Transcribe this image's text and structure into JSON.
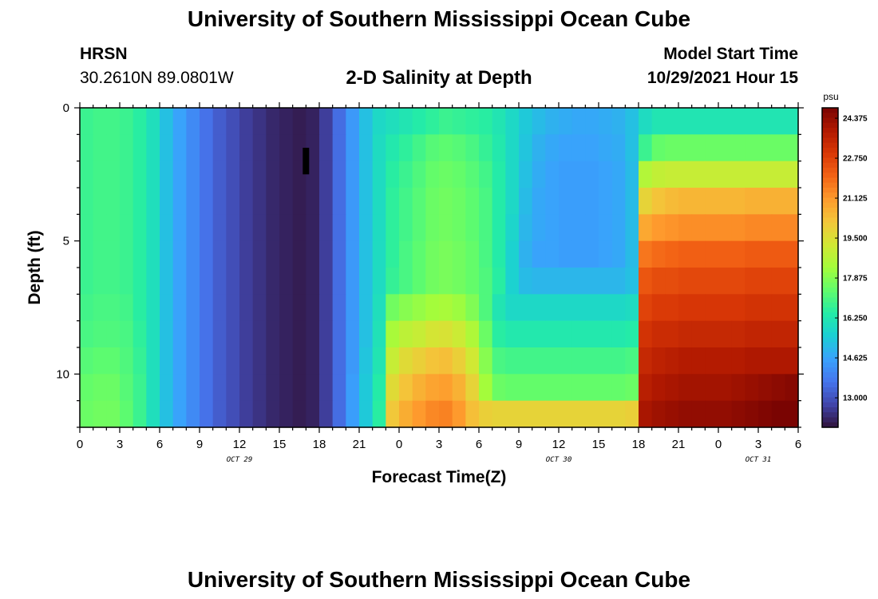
{
  "header": {
    "title": "University of Southern Mississippi Ocean Cube",
    "station_code": "HRSN",
    "station_coords": "30.2610N  89.0801W",
    "model_start_label": "Model Start Time",
    "model_start_value": "10/29/2021 Hour 15"
  },
  "footer": {
    "title": "University of Southern Mississippi Ocean Cube"
  },
  "chart_data": {
    "type": "heatmap",
    "title": "2-D Salinity at Depth",
    "xlabel": "Forecast Time(Z)",
    "ylabel": "Depth (ft)",
    "x_start_hour": 0,
    "x_end_hour": 54,
    "x_ticks": [
      {
        "hour": 0,
        "label": "0"
      },
      {
        "hour": 3,
        "label": "3"
      },
      {
        "hour": 6,
        "label": "6"
      },
      {
        "hour": 9,
        "label": "9"
      },
      {
        "hour": 12,
        "label": "12"
      },
      {
        "hour": 15,
        "label": "15"
      },
      {
        "hour": 18,
        "label": "18"
      },
      {
        "hour": 21,
        "label": "21"
      },
      {
        "hour": 24,
        "label": "0"
      },
      {
        "hour": 27,
        "label": "3"
      },
      {
        "hour": 30,
        "label": "6"
      },
      {
        "hour": 33,
        "label": "9"
      },
      {
        "hour": 36,
        "label": "12"
      },
      {
        "hour": 39,
        "label": "15"
      },
      {
        "hour": 42,
        "label": "18"
      },
      {
        "hour": 45,
        "label": "21"
      },
      {
        "hour": 48,
        "label": "0"
      },
      {
        "hour": 51,
        "label": "3"
      },
      {
        "hour": 54,
        "label": "6"
      }
    ],
    "date_labels": [
      {
        "hour": 12,
        "label": "OCT 29"
      },
      {
        "hour": 36,
        "label": "OCT 30"
      },
      {
        "hour": 51,
        "label": "OCT 31"
      }
    ],
    "y_range": [
      0,
      12
    ],
    "y_ticks": [
      {
        "value": 0,
        "label": "0"
      },
      {
        "value": 5,
        "label": "5"
      },
      {
        "value": 10,
        "label": "10"
      }
    ],
    "colorbar": {
      "unit": "psu",
      "min": 11.8,
      "max": 24.8,
      "ticks": [
        "24.375",
        "22.750",
        "21.125",
        "19.500",
        "17.875",
        "16.250",
        "14.625",
        "13.000"
      ]
    },
    "colors": [
      "#30123b",
      "#4145ab",
      "#4675ed",
      "#39a2fc",
      "#1bcfd4",
      "#24eca6",
      "#61fc6c",
      "#a4fc3b",
      "#d1e834",
      "#f3c63a",
      "#fe9b2d",
      "#f36315",
      "#d93806",
      "#b11901",
      "#7a0402"
    ],
    "missing_marker": {
      "hour": 17,
      "depth_from": 1.5,
      "depth_to": 2.5
    },
    "depth_levels_ft": [
      0.5,
      1.5,
      2.5,
      3.5,
      4.5,
      5.5,
      6.5,
      7.5,
      8.5,
      9.5,
      10.5,
      11.5
    ],
    "salinity_psu_by_depth": [
      [
        16.8,
        16.9,
        16.9,
        16.8,
        16.5,
        16.0,
        15.2,
        14.6,
        14.1,
        13.6,
        13.2,
        12.9,
        12.6,
        12.4,
        12.2,
        12.1,
        12.0,
        12.1,
        12.6,
        13.5,
        14.4,
        15.2,
        15.8,
        16.0,
        16.2,
        16.4,
        16.6,
        16.8,
        16.7,
        16.6,
        16.5,
        16.2,
        15.8,
        15.4,
        15.1,
        14.9,
        14.8,
        14.7,
        14.7,
        14.8,
        14.9,
        15.2,
        15.9,
        16.2,
        16.2,
        16.2,
        16.2,
        16.2,
        16.2,
        16.2,
        16.2,
        16.2,
        16.2,
        16.2
      ],
      [
        16.8,
        16.9,
        16.9,
        16.8,
        16.5,
        16.0,
        15.2,
        14.6,
        14.1,
        13.6,
        13.2,
        12.9,
        12.6,
        12.4,
        12.2,
        12.1,
        12.0,
        12.1,
        12.6,
        13.5,
        14.4,
        15.2,
        15.9,
        16.3,
        16.6,
        16.9,
        17.2,
        17.3,
        17.2,
        17.0,
        16.7,
        16.3,
        15.8,
        15.3,
        14.9,
        14.7,
        14.6,
        14.6,
        14.6,
        14.7,
        14.8,
        15.2,
        16.8,
        17.4,
        17.5,
        17.5,
        17.5,
        17.5,
        17.5,
        17.5,
        17.5,
        17.5,
        17.5,
        17.5
      ],
      [
        16.8,
        16.9,
        16.9,
        16.8,
        16.5,
        16.0,
        15.2,
        14.6,
        14.1,
        13.6,
        13.2,
        12.9,
        12.6,
        12.4,
        12.2,
        12.1,
        12.0,
        12.1,
        12.6,
        13.5,
        14.4,
        15.2,
        15.9,
        16.5,
        16.8,
        17.1,
        17.4,
        17.5,
        17.4,
        17.2,
        16.9,
        16.4,
        15.8,
        15.2,
        14.8,
        14.6,
        14.5,
        14.5,
        14.5,
        14.6,
        14.7,
        15.1,
        18.6,
        18.9,
        19.0,
        19.0,
        19.0,
        19.0,
        19.0,
        19.0,
        19.0,
        19.0,
        19.0,
        19.0
      ],
      [
        16.8,
        16.9,
        16.9,
        16.8,
        16.5,
        16.0,
        15.2,
        14.6,
        14.1,
        13.6,
        13.2,
        12.9,
        12.6,
        12.4,
        12.2,
        12.1,
        12.0,
        12.1,
        12.6,
        13.5,
        14.4,
        15.2,
        15.9,
        16.6,
        16.9,
        17.2,
        17.5,
        17.6,
        17.5,
        17.3,
        17.0,
        16.4,
        15.8,
        15.1,
        14.7,
        14.6,
        14.5,
        14.5,
        14.5,
        14.6,
        14.7,
        15.1,
        19.8,
        20.2,
        20.4,
        20.5,
        20.5,
        20.5,
        20.5,
        20.5,
        20.6,
        20.6,
        20.6,
        20.6
      ],
      [
        16.8,
        16.9,
        16.9,
        16.8,
        16.5,
        16.0,
        15.2,
        14.6,
        14.1,
        13.6,
        13.2,
        12.9,
        12.6,
        12.4,
        12.2,
        12.1,
        12.0,
        12.1,
        12.6,
        13.5,
        14.4,
        15.2,
        15.9,
        16.6,
        16.9,
        17.2,
        17.5,
        17.6,
        17.5,
        17.3,
        17.0,
        16.4,
        15.7,
        15.0,
        14.7,
        14.6,
        14.5,
        14.5,
        14.5,
        14.6,
        14.7,
        15.1,
        20.8,
        21.1,
        21.2,
        21.3,
        21.3,
        21.3,
        21.3,
        21.3,
        21.4,
        21.4,
        21.4,
        21.4
      ],
      [
        16.8,
        16.9,
        16.9,
        16.8,
        16.5,
        16.0,
        15.2,
        14.6,
        14.1,
        13.6,
        13.2,
        12.9,
        12.6,
        12.4,
        12.2,
        12.1,
        12.0,
        12.1,
        12.6,
        13.5,
        14.4,
        15.2,
        15.9,
        16.6,
        17.0,
        17.3,
        17.6,
        17.7,
        17.6,
        17.4,
        17.0,
        16.4,
        15.6,
        14.9,
        14.6,
        14.6,
        14.5,
        14.5,
        14.5,
        14.6,
        14.7,
        15.1,
        21.7,
        21.9,
        22.0,
        22.1,
        22.1,
        22.1,
        22.1,
        22.1,
        22.2,
        22.2,
        22.2,
        22.2
      ],
      [
        16.8,
        16.9,
        16.9,
        16.8,
        16.5,
        16.0,
        15.2,
        14.6,
        14.1,
        13.6,
        13.2,
        12.9,
        12.6,
        12.4,
        12.2,
        12.1,
        12.0,
        12.1,
        12.6,
        13.5,
        14.4,
        15.2,
        15.9,
        16.7,
        17.0,
        17.3,
        17.6,
        17.7,
        17.6,
        17.4,
        17.1,
        16.5,
        15.6,
        15.1,
        15.0,
        15.0,
        15.0,
        15.0,
        15.0,
        15.0,
        15.0,
        15.2,
        22.3,
        22.5,
        22.5,
        22.6,
        22.6,
        22.6,
        22.6,
        22.6,
        22.7,
        22.7,
        22.7,
        22.7
      ],
      [
        16.9,
        17.0,
        17.0,
        16.9,
        16.5,
        16.0,
        15.2,
        14.6,
        14.1,
        13.6,
        13.2,
        12.9,
        12.6,
        12.4,
        12.2,
        12.1,
        12.0,
        12.1,
        12.6,
        13.5,
        14.4,
        15.2,
        16.0,
        17.6,
        17.9,
        18.1,
        18.3,
        18.4,
        18.2,
        17.8,
        17.1,
        16.2,
        15.8,
        15.8,
        15.8,
        15.8,
        15.8,
        15.8,
        15.8,
        15.8,
        15.8,
        15.9,
        22.7,
        22.9,
        22.9,
        23.0,
        23.0,
        23.0,
        23.0,
        23.0,
        23.1,
        23.1,
        23.1,
        23.1
      ],
      [
        17.0,
        17.1,
        17.1,
        17.0,
        16.6,
        16.0,
        15.2,
        14.6,
        14.1,
        13.6,
        13.2,
        12.9,
        12.6,
        12.4,
        12.2,
        12.1,
        12.0,
        12.1,
        12.6,
        13.5,
        14.4,
        15.2,
        16.1,
        18.4,
        18.8,
        19.0,
        19.3,
        19.4,
        19.1,
        18.5,
        17.5,
        16.5,
        16.3,
        16.3,
        16.3,
        16.3,
        16.3,
        16.3,
        16.3,
        16.3,
        16.3,
        16.4,
        23.1,
        23.3,
        23.3,
        23.4,
        23.4,
        23.4,
        23.4,
        23.4,
        23.5,
        23.5,
        23.5,
        23.5
      ],
      [
        17.2,
        17.3,
        17.3,
        17.1,
        16.7,
        16.0,
        15.2,
        14.6,
        14.1,
        13.6,
        13.2,
        12.9,
        12.6,
        12.4,
        12.2,
        12.1,
        12.0,
        12.1,
        12.6,
        13.5,
        14.4,
        15.3,
        16.2,
        19.0,
        19.6,
        19.9,
        20.2,
        20.3,
        19.9,
        19.2,
        17.9,
        17.0,
        16.9,
        16.9,
        16.9,
        16.9,
        16.9,
        16.9,
        16.9,
        16.9,
        16.9,
        17.0,
        23.4,
        23.6,
        23.7,
        23.8,
        23.8,
        23.8,
        23.8,
        23.8,
        23.9,
        23.9,
        23.9,
        23.9
      ],
      [
        17.4,
        17.5,
        17.5,
        17.2,
        16.8,
        16.0,
        15.2,
        14.6,
        14.1,
        13.6,
        13.2,
        12.9,
        12.6,
        12.4,
        12.2,
        12.1,
        12.0,
        12.1,
        12.6,
        13.5,
        14.5,
        15.4,
        16.4,
        19.6,
        20.2,
        20.6,
        20.9,
        21.0,
        20.6,
        19.8,
        18.3,
        17.5,
        17.4,
        17.4,
        17.4,
        17.4,
        17.4,
        17.4,
        17.4,
        17.4,
        17.4,
        17.5,
        23.7,
        23.9,
        24.0,
        24.1,
        24.1,
        24.1,
        24.1,
        24.2,
        24.3,
        24.4,
        24.5,
        24.6
      ],
      [
        17.5,
        17.6,
        17.6,
        17.3,
        16.8,
        16.0,
        15.2,
        14.6,
        14.1,
        13.6,
        13.2,
        12.9,
        12.6,
        12.4,
        12.2,
        12.1,
        12.0,
        12.1,
        12.6,
        13.5,
        14.5,
        15.4,
        16.5,
        20.1,
        20.7,
        21.1,
        21.4,
        21.5,
        21.1,
        20.3,
        19.9,
        19.8,
        19.8,
        19.8,
        19.8,
        19.8,
        19.8,
        19.8,
        19.8,
        19.8,
        19.8,
        19.9,
        24.0,
        24.2,
        24.3,
        24.4,
        24.4,
        24.4,
        24.4,
        24.5,
        24.6,
        24.7,
        24.8,
        24.8
      ]
    ]
  }
}
